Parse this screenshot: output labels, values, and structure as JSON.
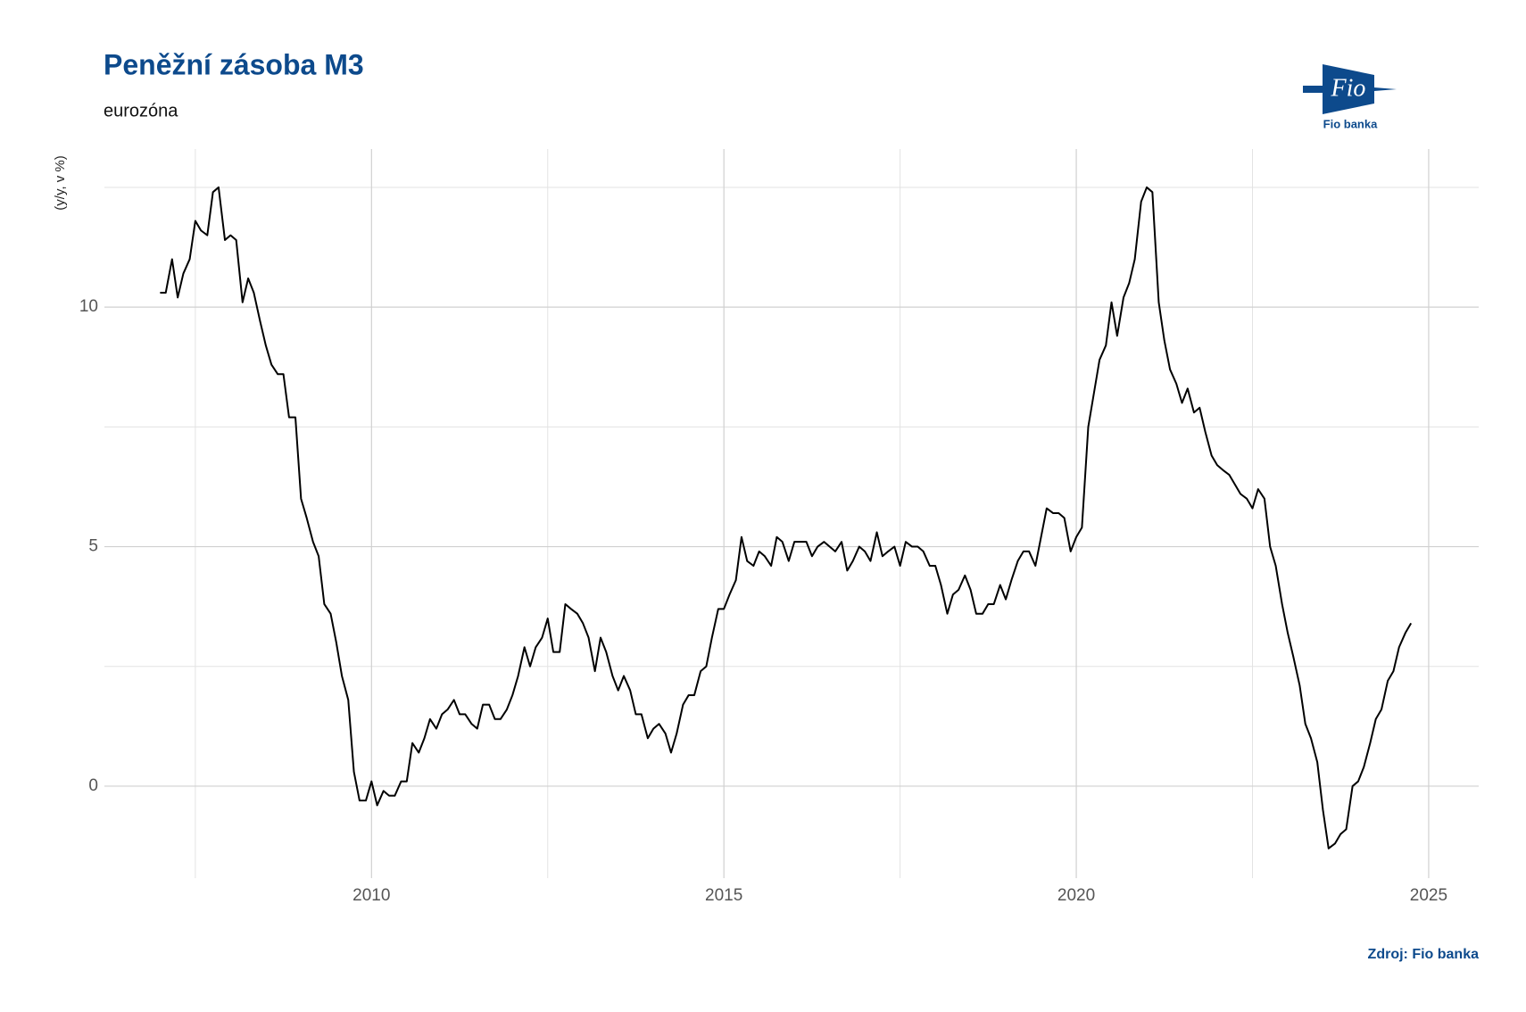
{
  "chart_data": {
    "type": "line",
    "title": "Peněžní zásoba M3",
    "subtitle": "eurozóna",
    "y_label": "(y/y, v %)",
    "source": "Zdroj: Fio banka",
    "logo_text": "Fio",
    "logo_caption": "Fio banka",
    "color": "#000000",
    "grid": true,
    "xlim": [
      2006.21,
      2025.71
    ],
    "xticks": [
      2010,
      2015,
      2020,
      2025
    ],
    "xminor": [
      2007.5,
      2012.5,
      2017.5,
      2022.5
    ],
    "ylim": [
      -1.92,
      13.3
    ],
    "yticks": [
      0,
      5,
      10
    ],
    "yminor": [
      2.5,
      7.5,
      12.5
    ],
    "x": [
      2007,
      2007.08,
      2007.17,
      2007.25,
      2007.33,
      2007.42,
      2007.5,
      2007.58,
      2007.67,
      2007.75,
      2007.83,
      2007.92,
      2008,
      2008.08,
      2008.17,
      2008.25,
      2008.33,
      2008.42,
      2008.5,
      2008.58,
      2008.67,
      2008.75,
      2008.83,
      2008.92,
      2009,
      2009.08,
      2009.17,
      2009.25,
      2009.33,
      2009.42,
      2009.5,
      2009.58,
      2009.67,
      2009.75,
      2009.83,
      2009.92,
      2010,
      2010.08,
      2010.17,
      2010.25,
      2010.33,
      2010.42,
      2010.5,
      2010.58,
      2010.67,
      2010.75,
      2010.83,
      2010.92,
      2011,
      2011.08,
      2011.17,
      2011.25,
      2011.33,
      2011.42,
      2011.5,
      2011.58,
      2011.67,
      2011.75,
      2011.83,
      2011.92,
      2012,
      2012.08,
      2012.17,
      2012.25,
      2012.33,
      2012.42,
      2012.5,
      2012.58,
      2012.67,
      2012.75,
      2012.83,
      2012.92,
      2013,
      2013.08,
      2013.17,
      2013.25,
      2013.33,
      2013.42,
      2013.5,
      2013.58,
      2013.67,
      2013.75,
      2013.83,
      2013.92,
      2014,
      2014.08,
      2014.17,
      2014.25,
      2014.33,
      2014.42,
      2014.5,
      2014.58,
      2014.67,
      2014.75,
      2014.83,
      2014.92,
      2015,
      2015.08,
      2015.17,
      2015.25,
      2015.33,
      2015.42,
      2015.5,
      2015.58,
      2015.67,
      2015.75,
      2015.83,
      2015.92,
      2016,
      2016.08,
      2016.17,
      2016.25,
      2016.33,
      2016.42,
      2016.5,
      2016.58,
      2016.67,
      2016.75,
      2016.83,
      2016.92,
      2017,
      2017.08,
      2017.17,
      2017.25,
      2017.33,
      2017.42,
      2017.5,
      2017.58,
      2017.67,
      2017.75,
      2017.83,
      2017.92,
      2018,
      2018.08,
      2018.17,
      2018.25,
      2018.33,
      2018.42,
      2018.5,
      2018.58,
      2018.67,
      2018.75,
      2018.83,
      2018.92,
      2019,
      2019.08,
      2019.17,
      2019.25,
      2019.33,
      2019.42,
      2019.5,
      2019.58,
      2019.67,
      2019.75,
      2019.83,
      2019.92,
      2020,
      2020.08,
      2020.17,
      2020.25,
      2020.33,
      2020.42,
      2020.5,
      2020.58,
      2020.67,
      2020.75,
      2020.83,
      2020.92,
      2021,
      2021.08,
      2021.17,
      2021.25,
      2021.33,
      2021.42,
      2021.5,
      2021.58,
      2021.67,
      2021.75,
      2021.83,
      2021.92,
      2022,
      2022.08,
      2022.17,
      2022.25,
      2022.33,
      2022.42,
      2022.5,
      2022.58,
      2022.67,
      2022.75,
      2022.83,
      2022.92,
      2023,
      2023.08,
      2023.17,
      2023.25,
      2023.33,
      2023.42,
      2023.5,
      2023.58,
      2023.67,
      2023.75,
      2023.83,
      2023.92,
      2024,
      2024.08,
      2024.17,
      2024.25,
      2024.33,
      2024.42,
      2024.5,
      2024.58,
      2024.67,
      2024.75
    ],
    "values": [
      10.3,
      10.3,
      11.0,
      10.2,
      10.7,
      11.0,
      11.8,
      11.6,
      11.5,
      12.4,
      12.5,
      11.4,
      11.5,
      11.4,
      10.1,
      10.6,
      10.3,
      9.7,
      9.2,
      8.8,
      8.6,
      8.6,
      7.7,
      7.7,
      6.0,
      5.6,
      5.1,
      4.8,
      3.8,
      3.6,
      3.0,
      2.3,
      1.8,
      0.3,
      -0.3,
      -0.3,
      0.1,
      -0.4,
      -0.1,
      -0.2,
      -0.2,
      0.1,
      0.1,
      0.9,
      0.7,
      1.0,
      1.4,
      1.2,
      1.5,
      1.6,
      1.8,
      1.5,
      1.5,
      1.3,
      1.2,
      1.7,
      1.7,
      1.4,
      1.4,
      1.6,
      1.9,
      2.3,
      2.9,
      2.5,
      2.9,
      3.1,
      3.5,
      2.8,
      2.8,
      3.8,
      3.7,
      3.6,
      3.4,
      3.1,
      2.4,
      3.1,
      2.8,
      2.3,
      2.0,
      2.3,
      2.0,
      1.5,
      1.5,
      1.0,
      1.2,
      1.3,
      1.1,
      0.7,
      1.1,
      1.7,
      1.9,
      1.9,
      2.4,
      2.5,
      3.1,
      3.7,
      3.7,
      4.0,
      4.3,
      5.2,
      4.7,
      4.6,
      4.9,
      4.8,
      4.6,
      5.2,
      5.1,
      4.7,
      5.1,
      5.1,
      5.1,
      4.8,
      5.0,
      5.1,
      5.0,
      4.9,
      5.1,
      4.5,
      4.7,
      5.0,
      4.9,
      4.7,
      5.3,
      4.8,
      4.9,
      5.0,
      4.6,
      5.1,
      5.0,
      5.0,
      4.9,
      4.6,
      4.6,
      4.2,
      3.6,
      4.0,
      4.1,
      4.4,
      4.1,
      3.6,
      3.6,
      3.8,
      3.8,
      4.2,
      3.9,
      4.3,
      4.7,
      4.9,
      4.9,
      4.6,
      5.2,
      5.8,
      5.7,
      5.7,
      5.6,
      4.9,
      5.2,
      5.4,
      7.5,
      8.2,
      8.9,
      9.2,
      10.1,
      9.4,
      10.2,
      10.5,
      11.0,
      12.2,
      12.5,
      12.4,
      10.1,
      9.3,
      8.7,
      8.4,
      8.0,
      8.3,
      7.8,
      7.9,
      7.4,
      6.9,
      6.7,
      6.6,
      6.5,
      6.3,
      6.1,
      6.0,
      5.8,
      6.2,
      6.0,
      5.0,
      4.6,
      3.8,
      3.2,
      2.7,
      2.1,
      1.3,
      1.0,
      0.5,
      -0.5,
      -1.3,
      -1.2,
      -1.0,
      -0.9,
      0.0,
      0.1,
      0.4,
      0.9,
      1.4,
      1.6,
      2.2,
      2.4,
      2.9,
      3.2,
      3.4
    ]
  }
}
